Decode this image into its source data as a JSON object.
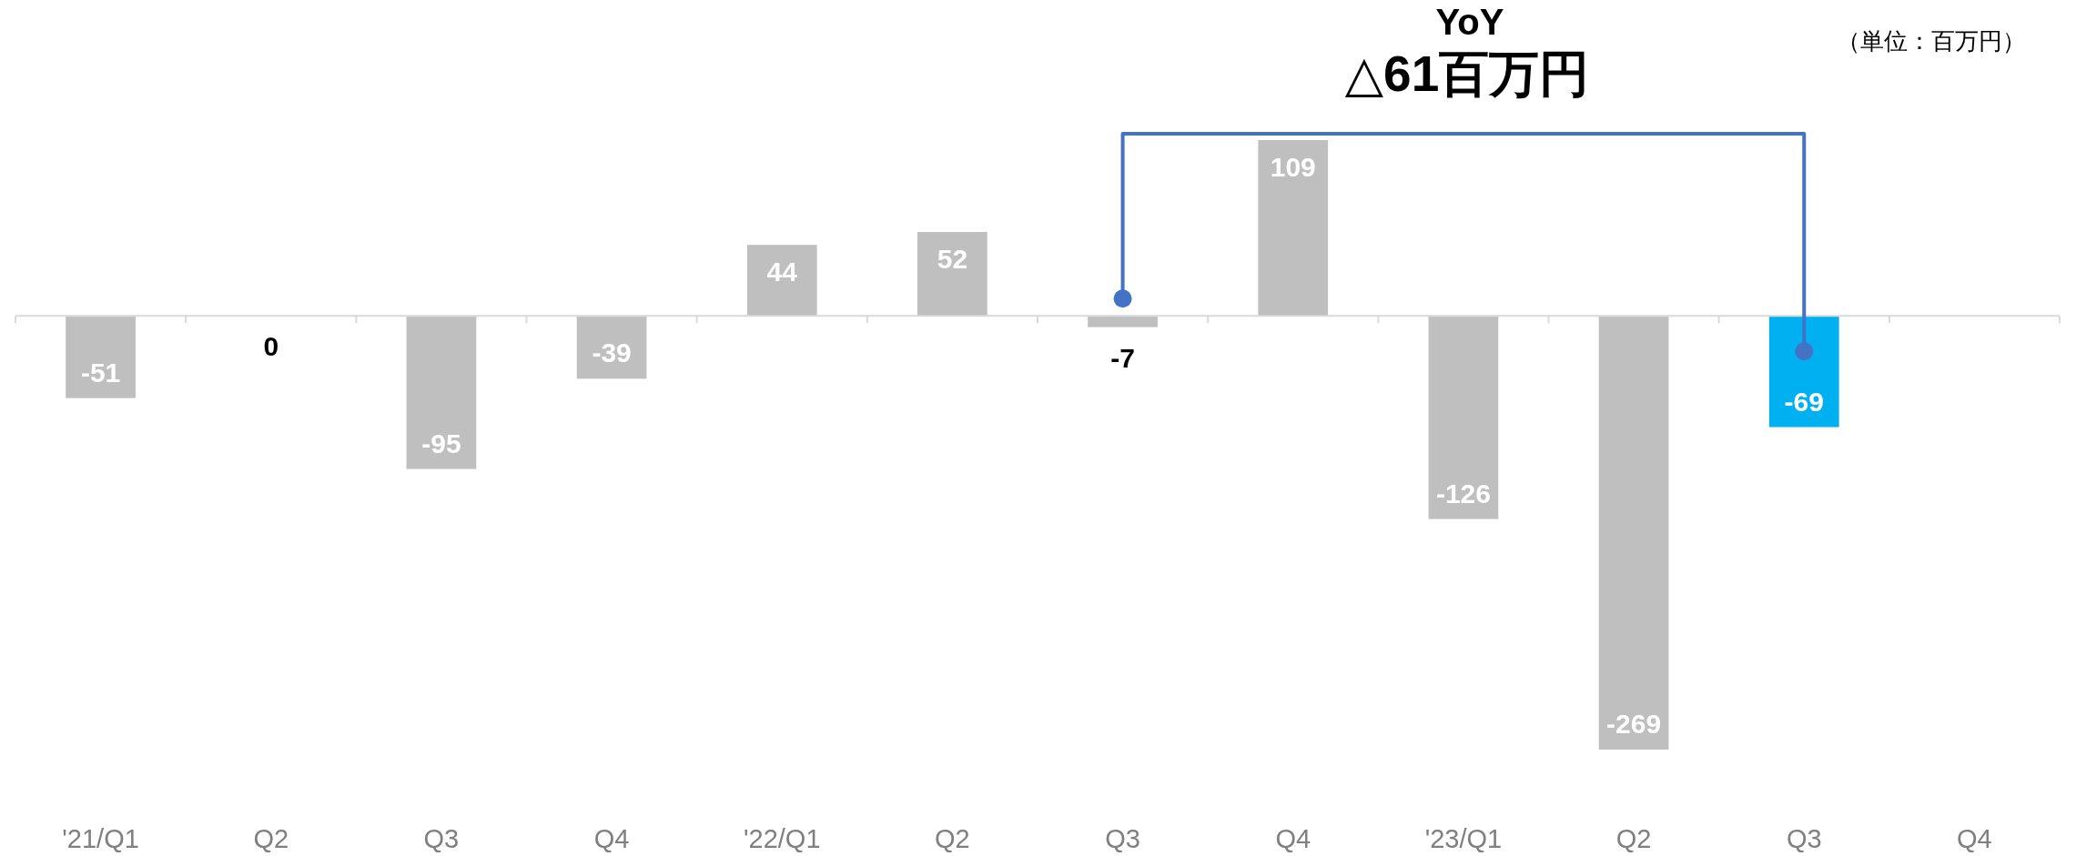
{
  "chart_data": {
    "type": "bar",
    "categories": [
      "'21/Q1",
      "Q2",
      "Q3",
      "Q4",
      "'22/Q1",
      "Q2",
      "Q3",
      "Q4",
      "'23/Q1",
      "Q2",
      "Q3",
      "Q4"
    ],
    "values": [
      -51,
      0,
      -95,
      -39,
      44,
      52,
      -7,
      109,
      -126,
      -269,
      -69,
      null
    ],
    "colors": [
      "#bfbfbf",
      "#bfbfbf",
      "#bfbfbf",
      "#bfbfbf",
      "#bfbfbf",
      "#bfbfbf",
      "#bfbfbf",
      "#bfbfbf",
      "#bfbfbf",
      "#bfbfbf",
      "#00b0f0",
      "#bfbfbf"
    ],
    "data_labels": true,
    "annotations": [
      "YoY",
      "△61百万円",
      "（単位：百万円）"
    ]
  }
}
